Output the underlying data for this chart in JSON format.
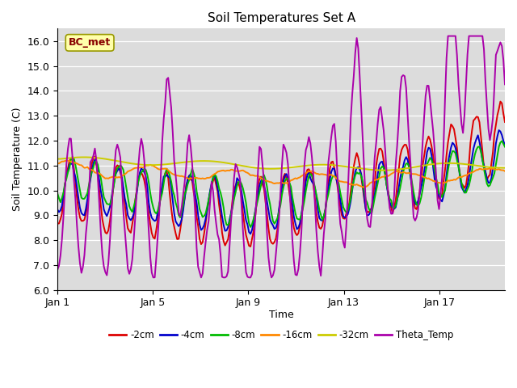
{
  "title": "Soil Temperatures Set A",
  "xlabel": "Time",
  "ylabel": "Soil Temperature (C)",
  "ylim": [
    6.0,
    16.5
  ],
  "yticks": [
    6.0,
    7.0,
    8.0,
    9.0,
    10.0,
    11.0,
    12.0,
    13.0,
    14.0,
    15.0,
    16.0
  ],
  "bg_color": "#dcdcdc",
  "legend_label": "BC_met",
  "legend_box_color": "#ffffaa",
  "legend_box_edge": "#999900",
  "legend_text_color": "#880000",
  "series": {
    "-2cm": {
      "color": "#dd0000",
      "lw": 1.4
    },
    "-4cm": {
      "color": "#0000cc",
      "lw": 1.4
    },
    "-8cm": {
      "color": "#00bb00",
      "lw": 1.4
    },
    "-16cm": {
      "color": "#ff8800",
      "lw": 1.4
    },
    "-32cm": {
      "color": "#cccc00",
      "lw": 1.4
    },
    "Theta_Temp": {
      "color": "#aa00aa",
      "lw": 1.4
    }
  },
  "xtick_labels": [
    "Jan 1",
    "Jan 5",
    "Jan 9",
    "Jan 13",
    "Jan 17"
  ],
  "xtick_positions": [
    0,
    4,
    8,
    12,
    16
  ]
}
